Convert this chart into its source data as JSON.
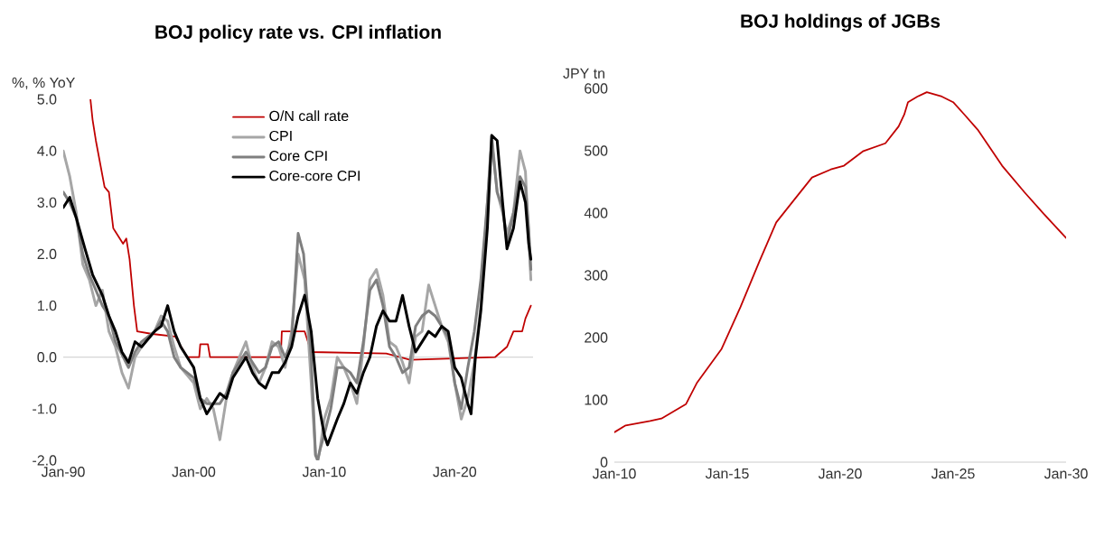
{
  "chart_data": [
    {
      "type": "line",
      "title": "BOJ policy rate vs. CPI inflation",
      "ylabel": "%, % YoY",
      "xlim": [
        "1990-01",
        "2026-01"
      ],
      "ylim": [
        -2,
        5
      ],
      "xticks": [
        {
          "value": "1990-01",
          "label": "Jan-90"
        },
        {
          "value": "2000-01",
          "label": "Jan-00"
        },
        {
          "value": "2010-01",
          "label": "Jan-10"
        },
        {
          "value": "2020-01",
          "label": "Jan-20"
        }
      ],
      "yticks": [
        {
          "value": -2,
          "label": "-2.0"
        },
        {
          "value": -1,
          "label": "-1.0"
        },
        {
          "value": 0,
          "label": "0.0"
        },
        {
          "value": 1,
          "label": "1.0"
        },
        {
          "value": 2,
          "label": "2.0"
        },
        {
          "value": 3,
          "label": "3.0"
        },
        {
          "value": 4,
          "label": "4.0"
        },
        {
          "value": 5,
          "label": "5.0"
        }
      ],
      "legend": "top",
      "series": [
        {
          "name": "O/N call rate",
          "color": "#c00000",
          "x": [
            "1992-02",
            "1992-04",
            "1992-07",
            "1993-03",
            "1993-07",
            "1993-11",
            "1994-08",
            "1994-11",
            "1995-02",
            "1995-06",
            "1995-09",
            "1996-11",
            "1998-08",
            "1999-07",
            "2000-06",
            "2000-07",
            "2001-02",
            "2001-04",
            "2006-09",
            "2006-10",
            "2008-07",
            "2009-01",
            "2014-10",
            "2016-08",
            "2023-02",
            "2024-01",
            "2024-07",
            "2025-03",
            "2025-06",
            "2025-11"
          ],
          "values": [
            5.0,
            4.6,
            4.2,
            3.3,
            3.2,
            2.5,
            2.2,
            2.3,
            1.9,
            1.0,
            0.5,
            0.45,
            0.4,
            0.0,
            0.0,
            0.25,
            0.25,
            0.0,
            0.0,
            0.5,
            0.5,
            0.1,
            0.07,
            -0.05,
            0.0,
            0.2,
            0.5,
            0.5,
            0.75,
            1.0
          ]
        },
        {
          "name": "CPI",
          "color": "#a6a6a6",
          "x": [
            "1990-01",
            "1990-07",
            "1991-01",
            "1991-07",
            "1992-01",
            "1992-07",
            "1993-01",
            "1993-07",
            "1994-01",
            "1994-07",
            "1995-01",
            "1995-07",
            "1996-01",
            "1997-01",
            "1997-07",
            "1998-01",
            "1998-07",
            "1999-01",
            "2000-01",
            "2000-07",
            "2001-01",
            "2001-07",
            "2002-01",
            "2002-07",
            "2003-01",
            "2004-01",
            "2004-07",
            "2005-01",
            "2005-07",
            "2006-01",
            "2006-07",
            "2007-01",
            "2007-07",
            "2008-01",
            "2008-07",
            "2009-01",
            "2009-05",
            "2009-07",
            "2009-09",
            "2010-01",
            "2010-07",
            "2011-01",
            "2011-07",
            "2012-01",
            "2012-07",
            "2013-01",
            "2013-07",
            "2014-01",
            "2014-07",
            "2015-01",
            "2015-07",
            "2016-01",
            "2016-07",
            "2017-01",
            "2017-07",
            "2018-01",
            "2018-07",
            "2019-01",
            "2019-07",
            "2020-01",
            "2020-07",
            "2021-01",
            "2021-07",
            "2022-01",
            "2022-07",
            "2022-11",
            "2023-04",
            "2023-09",
            "2024-01",
            "2024-07",
            "2025-01",
            "2025-06",
            "2025-09",
            "2025-11"
          ],
          "values": [
            4.0,
            3.5,
            2.8,
            1.8,
            1.5,
            1.0,
            1.3,
            0.5,
            0.2,
            -0.3,
            -0.6,
            0.0,
            0.2,
            0.5,
            0.8,
            0.7,
            0.2,
            -0.2,
            -0.5,
            -1.0,
            -0.8,
            -1.0,
            -1.6,
            -0.8,
            -0.3,
            0.3,
            -0.2,
            -0.5,
            -0.2,
            0.3,
            0.2,
            -0.2,
            0.5,
            2.0,
            1.5,
            -0.5,
            -1.9,
            -2.0,
            -1.8,
            -1.2,
            -0.8,
            0.0,
            -0.2,
            -0.5,
            -0.9,
            0.2,
            1.5,
            1.7,
            1.2,
            0.3,
            0.2,
            -0.1,
            -0.5,
            0.4,
            0.5,
            1.4,
            1.0,
            0.6,
            0.3,
            -0.5,
            -1.2,
            -0.8,
            -0.1,
            1.0,
            3.0,
            4.3,
            3.2,
            2.8,
            2.4,
            2.8,
            4.0,
            3.6,
            2.3,
            1.5
          ]
        },
        {
          "name": "Core CPI",
          "color": "#7f7f7f",
          "x": [
            "1990-01",
            "1990-07",
            "1991-01",
            "1991-07",
            "1992-01",
            "1993-01",
            "1993-07",
            "1994-01",
            "1995-01",
            "1995-07",
            "1996-01",
            "1997-01",
            "1997-07",
            "1998-01",
            "1998-07",
            "1999-01",
            "2000-01",
            "2000-07",
            "2001-01",
            "2002-01",
            "2002-07",
            "2003-01",
            "2004-01",
            "2004-07",
            "2005-01",
            "2005-07",
            "2006-01",
            "2006-07",
            "2007-01",
            "2007-07",
            "2008-01",
            "2008-06",
            "2009-01",
            "2009-05",
            "2009-07",
            "2009-09",
            "2010-01",
            "2010-07",
            "2011-01",
            "2011-07",
            "2012-01",
            "2012-07",
            "2013-01",
            "2013-07",
            "2014-01",
            "2014-07",
            "2015-01",
            "2015-07",
            "2016-01",
            "2016-07",
            "2017-01",
            "2017-07",
            "2018-01",
            "2018-07",
            "2019-01",
            "2019-07",
            "2020-01",
            "2020-07",
            "2021-01",
            "2021-07",
            "2022-01",
            "2022-07",
            "2022-11",
            "2023-04",
            "2023-09",
            "2024-01",
            "2024-07",
            "2025-01",
            "2025-06",
            "2025-09",
            "2025-11"
          ],
          "values": [
            3.2,
            3.0,
            2.7,
            2.0,
            1.6,
            1.0,
            0.8,
            0.3,
            -0.2,
            0.1,
            0.3,
            0.5,
            0.7,
            0.5,
            0.0,
            -0.2,
            -0.4,
            -0.8,
            -0.9,
            -0.9,
            -0.7,
            -0.3,
            0.1,
            -0.1,
            -0.3,
            -0.2,
            0.2,
            0.3,
            0.0,
            0.3,
            2.4,
            2.0,
            0.0,
            -1.9,
            -2.0,
            -1.8,
            -1.5,
            -1.0,
            -0.2,
            -0.2,
            -0.3,
            -0.5,
            0.3,
            1.3,
            1.5,
            1.0,
            0.2,
            0.0,
            -0.3,
            -0.2,
            0.6,
            0.8,
            0.9,
            0.8,
            0.6,
            0.4,
            -0.5,
            -1.0,
            -0.2,
            0.5,
            1.5,
            3.0,
            4.2,
            3.2,
            2.9,
            2.2,
            2.8,
            3.5,
            3.3,
            2.5,
            1.7
          ]
        },
        {
          "name": "Core-core CPI",
          "color": "#000000",
          "x": [
            "1990-01",
            "1990-07",
            "1991-01",
            "1991-09",
            "1992-04",
            "1993-01",
            "1993-07",
            "1994-01",
            "1994-07",
            "1995-01",
            "1995-07",
            "1996-01",
            "1997-01",
            "1997-07",
            "1998-01",
            "1998-07",
            "1999-01",
            "2000-01",
            "2000-07",
            "2001-01",
            "2001-07",
            "2002-01",
            "2002-07",
            "2003-01",
            "2004-01",
            "2004-07",
            "2005-01",
            "2005-07",
            "2006-01",
            "2006-07",
            "2007-01",
            "2007-07",
            "2008-01",
            "2008-07",
            "2009-01",
            "2009-07",
            "2010-01",
            "2010-04",
            "2011-01",
            "2011-07",
            "2012-01",
            "2012-07",
            "2013-01",
            "2013-07",
            "2014-01",
            "2014-07",
            "2015-01",
            "2015-07",
            "2016-01",
            "2016-07",
            "2017-01",
            "2017-07",
            "2018-01",
            "2018-07",
            "2019-01",
            "2019-07",
            "2020-01",
            "2020-07",
            "2021-01",
            "2021-04",
            "2021-08",
            "2022-01",
            "2022-07",
            "2022-11",
            "2023-04",
            "2023-09",
            "2024-01",
            "2024-07",
            "2025-01",
            "2025-06",
            "2025-09",
            "2025-11"
          ],
          "values": [
            2.9,
            3.1,
            2.7,
            2.1,
            1.6,
            1.2,
            0.8,
            0.5,
            0.1,
            -0.1,
            0.3,
            0.2,
            0.5,
            0.6,
            1.0,
            0.5,
            0.2,
            -0.2,
            -0.8,
            -1.1,
            -0.9,
            -0.7,
            -0.8,
            -0.4,
            0.0,
            -0.3,
            -0.5,
            -0.6,
            -0.3,
            -0.3,
            -0.1,
            0.2,
            0.8,
            1.2,
            0.5,
            -0.8,
            -1.5,
            -1.7,
            -1.2,
            -0.9,
            -0.5,
            -0.7,
            -0.3,
            0.0,
            0.6,
            0.9,
            0.7,
            0.7,
            1.2,
            0.6,
            0.1,
            0.3,
            0.5,
            0.4,
            0.6,
            0.5,
            -0.2,
            -0.4,
            -0.9,
            -1.1,
            0.0,
            0.9,
            2.5,
            4.3,
            4.2,
            3.0,
            2.1,
            2.5,
            3.4,
            3.0,
            2.2,
            1.9
          ]
        }
      ]
    },
    {
      "type": "line",
      "title": "BOJ holdings of JGBs",
      "ylabel": "JPY tn",
      "xlim": [
        "2010-01",
        "2030-01"
      ],
      "ylim": [
        0,
        600
      ],
      "xticks": [
        {
          "value": "2010-01",
          "label": "Jan-10"
        },
        {
          "value": "2015-01",
          "label": "Jan-15"
        },
        {
          "value": "2020-01",
          "label": "Jan-20"
        },
        {
          "value": "2025-01",
          "label": "Jan-25"
        },
        {
          "value": "2030-01",
          "label": "Jan-30"
        }
      ],
      "yticks": [
        0,
        100,
        200,
        300,
        400,
        500,
        600
      ],
      "series": [
        {
          "color": "#c00000",
          "x": [
            "2010-01",
            "2010-07",
            "2011-08",
            "2012-02",
            "2013-03",
            "2013-09",
            "2014-10",
            "2015-08",
            "2016-06",
            "2017-03",
            "2018-01",
            "2018-10",
            "2019-08",
            "2020-03",
            "2021-01",
            "2022-01",
            "2022-08",
            "2022-11",
            "2023-01",
            "2023-06",
            "2023-11",
            "2024-07",
            "2025-01",
            "2025-07",
            "2026-02",
            "2027-03",
            "2028-03",
            "2029-01",
            "2030-01"
          ],
          "values": [
            48,
            59,
            66,
            70,
            93,
            128,
            182,
            249,
            322,
            385,
            423,
            457,
            470,
            476,
            499,
            512,
            539,
            558,
            578,
            587,
            594,
            587,
            578,
            558,
            534,
            476,
            433,
            399,
            360
          ]
        }
      ]
    }
  ]
}
